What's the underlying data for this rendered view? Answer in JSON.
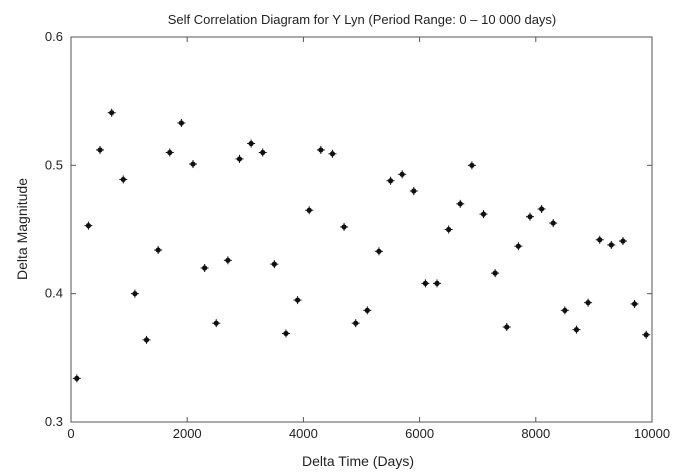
{
  "chart_data": {
    "type": "scatter",
    "title": "Self Correlation Diagram for Y Lyn (Period Range: 0 – 10 000 days)",
    "xlabel": "Delta Time (Days)",
    "ylabel": "Delta Magnitude",
    "xlim": [
      0,
      10000
    ],
    "ylim": [
      0.3,
      0.6
    ],
    "xticks": [
      0,
      2000,
      4000,
      6000,
      8000,
      10000
    ],
    "xtick_labels": [
      "0",
      "2000",
      "4000",
      "6000",
      "8000",
      "10000"
    ],
    "yticks": [
      0.3,
      0.4,
      0.5,
      0.6
    ],
    "ytick_labels": [
      "0.3",
      "0.4",
      "0.5",
      "0.6"
    ],
    "grid": false,
    "marker_color": "#111111",
    "x": [
      100,
      300,
      500,
      700,
      900,
      1100,
      1300,
      1500,
      1700,
      1900,
      2100,
      2300,
      2500,
      2700,
      2900,
      3100,
      3300,
      3500,
      3700,
      3900,
      4100,
      4300,
      4500,
      4700,
      4900,
      5100,
      5300,
      5500,
      5700,
      5900,
      6100,
      6300,
      6500,
      6700,
      6900,
      7100,
      7300,
      7500,
      7700,
      7900,
      8100,
      8300,
      8500,
      8700,
      8900,
      9100,
      9300,
      9500,
      9700,
      9900
    ],
    "y": [
      0.334,
      0.453,
      0.512,
      0.541,
      0.489,
      0.4,
      0.364,
      0.434,
      0.51,
      0.533,
      0.501,
      0.42,
      0.377,
      0.426,
      0.505,
      0.517,
      0.51,
      0.423,
      0.369,
      0.395,
      0.465,
      0.512,
      0.509,
      0.452,
      0.377,
      0.387,
      0.433,
      0.488,
      0.493,
      0.48,
      0.408,
      0.408,
      0.45,
      0.47,
      0.5,
      0.462,
      0.416,
      0.374,
      0.437,
      0.46,
      0.466,
      0.455,
      0.387,
      0.372,
      0.393,
      0.442,
      0.438,
      0.441,
      0.392,
      0.368
    ]
  }
}
